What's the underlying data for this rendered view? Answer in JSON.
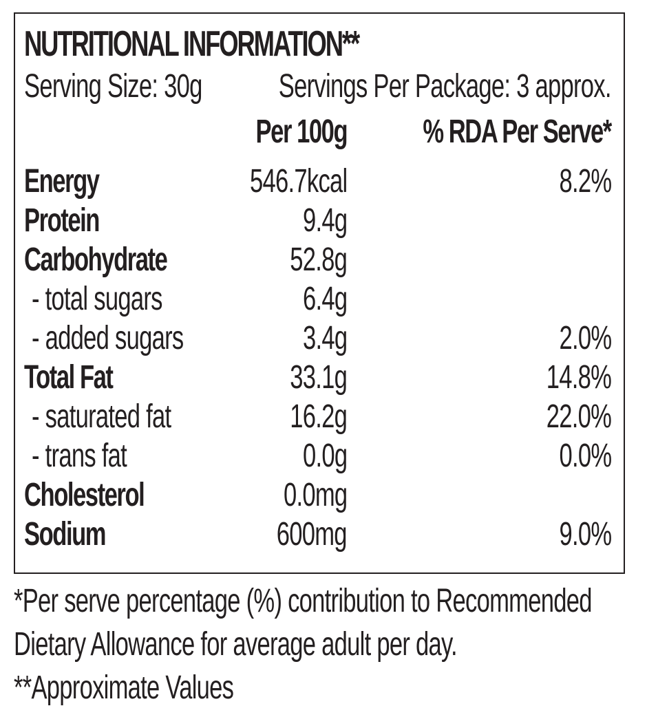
{
  "label": {
    "title": "NUTRITIONAL INFORMATION**",
    "serving_size": "Serving Size: 30g",
    "servings_per_package": "Servings Per Package: 3 approx.",
    "headers": {
      "per_100g": "Per 100g",
      "rda": "% RDA Per Serve*"
    },
    "rows": [
      {
        "name": "Energy",
        "per_100g": "546.7kcal",
        "rda": "8.2%"
      },
      {
        "name": "Protein",
        "per_100g": "9.4g",
        "rda": ""
      },
      {
        "name": "Carbohydrate",
        "per_100g": "52.8g",
        "rda": ""
      },
      {
        "name": "- total sugars",
        "per_100g": "6.4g",
        "rda": ""
      },
      {
        "name": "- added sugars",
        "per_100g": "3.4g",
        "rda": "2.0%"
      },
      {
        "name": "Total Fat",
        "per_100g": "33.1g",
        "rda": "14.8%"
      },
      {
        "name": "- saturated fat",
        "per_100g": "16.2g",
        "rda": "22.0%"
      },
      {
        "name": "- trans fat",
        "per_100g": "0.0g",
        "rda": "0.0%"
      },
      {
        "name": "Cholesterol",
        "per_100g": "0.0mg",
        "rda": ""
      },
      {
        "name": "Sodium",
        "per_100g": "600mg",
        "rda": "9.0%"
      }
    ]
  },
  "footnotes": [
    "*Per serve percentage (%) contribution to Recommended",
    "Dietary Allowance for average adult per day.",
    "**Approximate Values"
  ]
}
